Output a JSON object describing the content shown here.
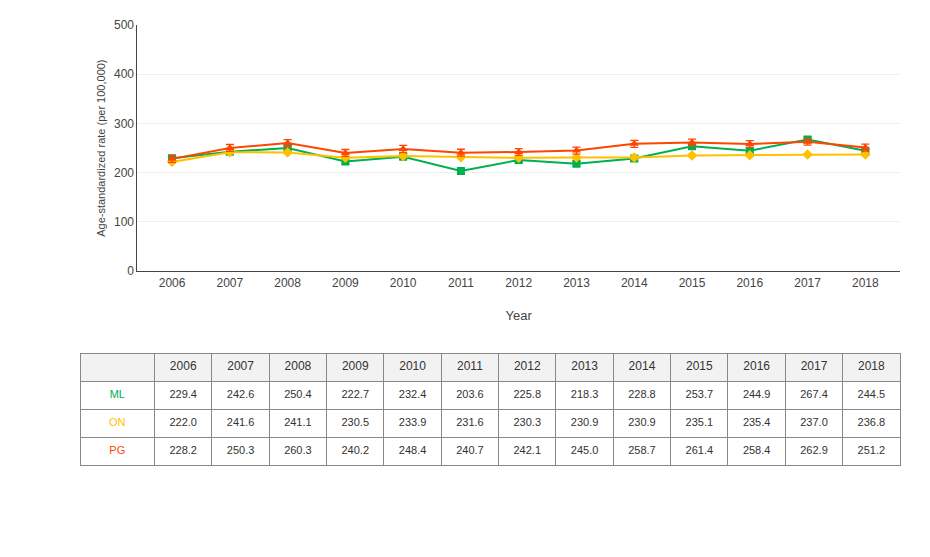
{
  "chart_data": {
    "type": "line",
    "x_label": "Year",
    "y_label": "Age-standardized rate (per 100,000)",
    "x": [
      2006,
      2007,
      2008,
      2009,
      2010,
      2011,
      2012,
      2013,
      2014,
      2015,
      2016,
      2017,
      2018
    ],
    "xlim": [
      2005.4,
      2018.6
    ],
    "xticks": [
      2006,
      2007,
      2008,
      2009,
      2010,
      2011,
      2012,
      2013,
      2014,
      2015,
      2016,
      2017,
      2018
    ],
    "ylim": [
      0,
      500
    ],
    "yticks": [
      0,
      100,
      200,
      300,
      400,
      500
    ],
    "grid": true,
    "data_labels": true,
    "series": [
      {
        "name": "ML",
        "color": "#00B050",
        "marker": "square",
        "values": [
          229.4,
          242.6,
          250.4,
          222.7,
          232.4,
          203.6,
          225.8,
          218.3,
          228.8,
          253.7,
          244.9,
          267.4,
          244.5
        ],
        "value_labels": [
          "229.4",
          "242.6",
          "250.4",
          "222.7",
          "232.4",
          "203.6",
          "225.8",
          "218.3",
          "228.8",
          "253.7",
          "244.9",
          "267.4",
          "244.5"
        ],
        "error": [
          5,
          5,
          5,
          5,
          5,
          5,
          5,
          5,
          5,
          5,
          5,
          5,
          5
        ]
      },
      {
        "name": "ON",
        "color": "#FFC000",
        "marker": "diamond",
        "values": [
          222.0,
          241.6,
          241.1,
          230.5,
          233.9,
          231.6,
          230.3,
          230.9,
          230.9,
          235.1,
          235.4,
          237.0,
          236.8
        ],
        "value_labels": [
          "222.0",
          "241.6",
          "241.1",
          "230.5",
          "233.9",
          "231.6",
          "230.3",
          "230.9",
          "230.9",
          "235.1",
          "235.4",
          "237.0",
          "236.8"
        ],
        "error": [
          2,
          2,
          2,
          2,
          2,
          2,
          2,
          2,
          2,
          2,
          2,
          2,
          2
        ]
      },
      {
        "name": "PG",
        "color": "#FF4500",
        "marker": "triangle-up",
        "values": [
          228.2,
          250.3,
          260.3,
          240.2,
          248.4,
          240.7,
          242.1,
          245.0,
          258.7,
          261.4,
          258.4,
          262.9,
          251.2
        ],
        "value_labels": [
          "228.2",
          "250.3",
          "260.3",
          "240.2",
          "248.4",
          "240.7",
          "242.1",
          "245.0",
          "258.7",
          "261.4",
          "258.4",
          "262.9",
          "251.2"
        ],
        "error": [
          7,
          7,
          7,
          7,
          7,
          7,
          7,
          7,
          7,
          7,
          7,
          7,
          7
        ]
      }
    ]
  }
}
